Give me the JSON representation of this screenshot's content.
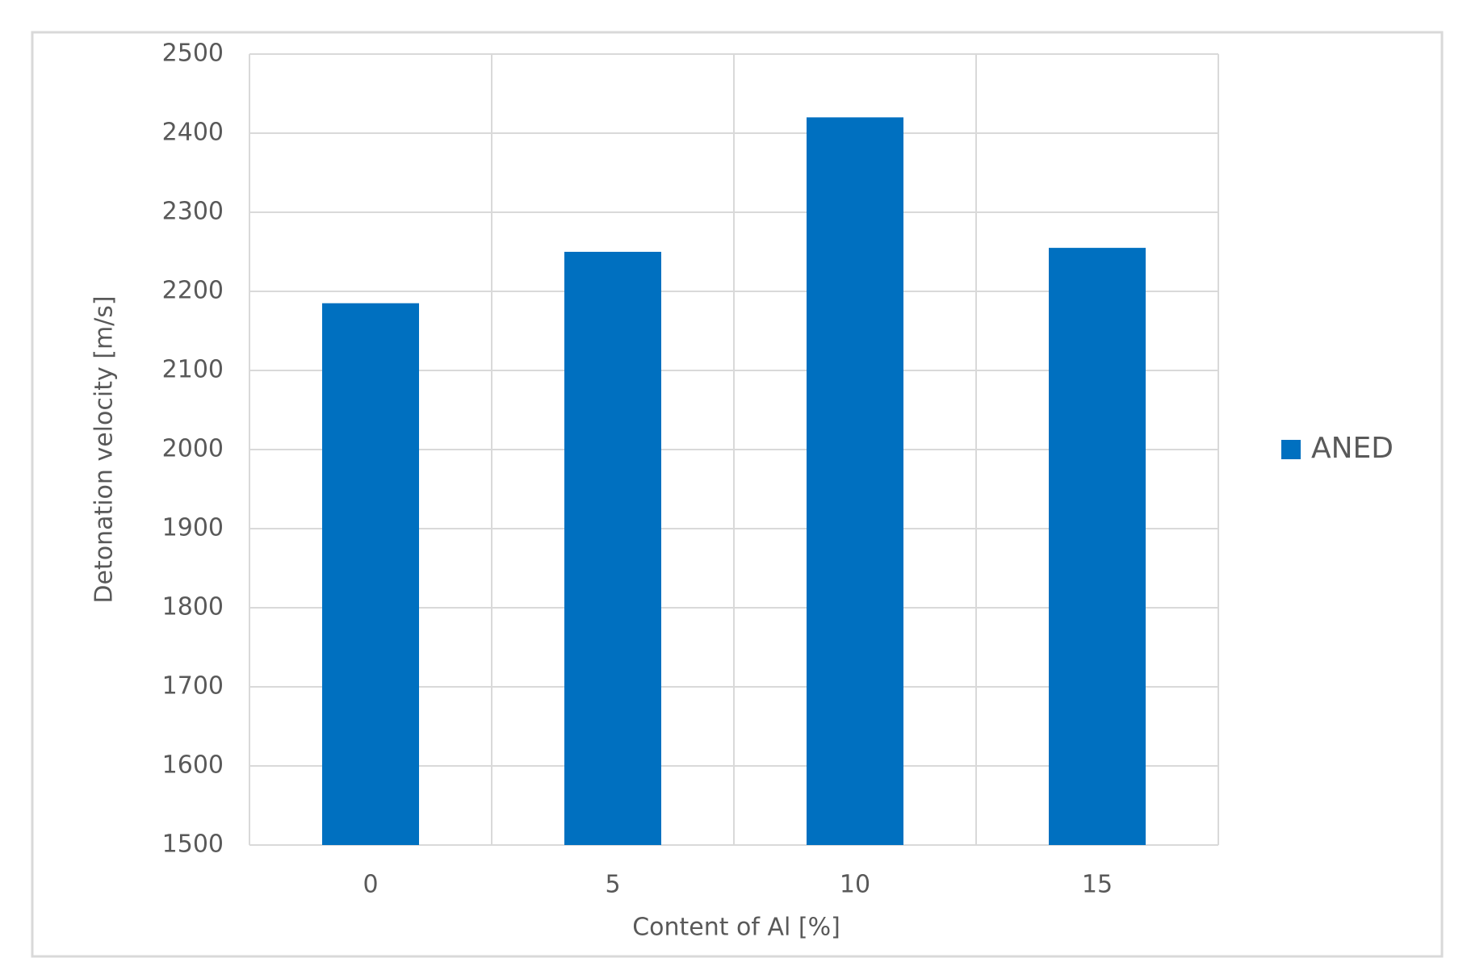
{
  "chart_data": {
    "type": "bar",
    "x_label": "Content of Al [%]",
    "y_label": "Detonation velocity [m/s]",
    "categories": [
      "0",
      "5",
      "10",
      "15"
    ],
    "series": [
      {
        "name": "ANED",
        "color": "#0070c0",
        "values": [
          2185,
          2250,
          2420,
          2255
        ]
      }
    ],
    "ylim": [
      1500,
      2500
    ],
    "yticks": [
      1500,
      1600,
      1700,
      1800,
      1900,
      2000,
      2100,
      2200,
      2300,
      2400,
      2500
    ],
    "grid": true,
    "legend": "right"
  }
}
